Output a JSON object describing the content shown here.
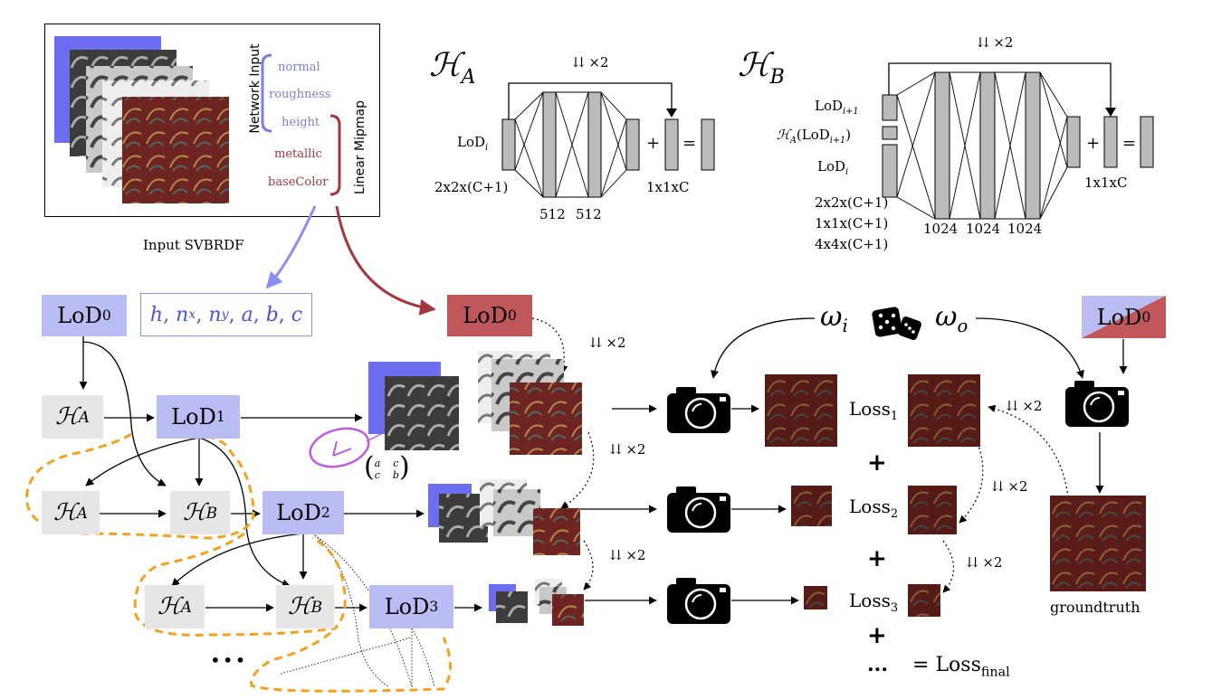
{
  "input_panel": {
    "caption": "Input SVBRDF",
    "network_input_label": "Network Input",
    "linear_mipmap_label": "Linear Mipmap",
    "channels": [
      "normal",
      "roughness",
      "height",
      "metallic",
      "baseColor"
    ],
    "channel_colors": {
      "blue": "#7b7fdc",
      "red": "#a4373d"
    }
  },
  "arch_a": {
    "title": "ℋ",
    "title_sub": "A",
    "skip_label": "⇊ ×2",
    "input_label": "LoD",
    "input_sub": "i",
    "input_dims": "2x2x(C+1)",
    "hidden": [
      "512",
      "512"
    ],
    "output_dims": "1x1xC",
    "plus": "+",
    "equals": "="
  },
  "arch_b": {
    "title": "ℋ",
    "title_sub": "B",
    "skip_label": "⇊ ×2",
    "inputs": [
      {
        "label": "LoD",
        "sub": "i+1"
      },
      {
        "label": "ℋ",
        "sub": "A",
        "tail": "(LoD",
        "tail_sub": "i+1",
        "close": ")"
      },
      {
        "label": "LoD",
        "sub": "i"
      }
    ],
    "input_dims": [
      "2x2x(C+1)",
      "1x1x(C+1)",
      "4x4x(C+1)"
    ],
    "hidden": [
      "1024",
      "1024",
      "1024"
    ],
    "output_dims": "1x1xC",
    "plus": "+",
    "equals": "="
  },
  "pipeline": {
    "lod_label": "LoD",
    "lod_subs": [
      "0",
      "1",
      "2",
      "3"
    ],
    "red_lod_sub": "0",
    "gt_lod_sub": "0",
    "params": "h, n",
    "params_full": [
      "h",
      "n",
      "x",
      "n",
      "y",
      "a",
      "b",
      "c"
    ],
    "ha": "ℋ",
    "ha_sub": "A",
    "hb_sub": "B",
    "ellipsis": "•••",
    "downsample": "⇊ ×2",
    "omega_i": "ω",
    "omega_i_sub": "i",
    "omega_o": "ω",
    "omega_o_sub": "o",
    "matrix": [
      "a",
      "c",
      "c",
      "b"
    ],
    "loss": "Loss",
    "loss_subs": [
      "1",
      "2",
      "3"
    ],
    "plus": "+",
    "dots": "...",
    "final_eq": "=",
    "loss_final": "Loss",
    "loss_final_sub": "final",
    "groundtruth": "groundtruth"
  }
}
